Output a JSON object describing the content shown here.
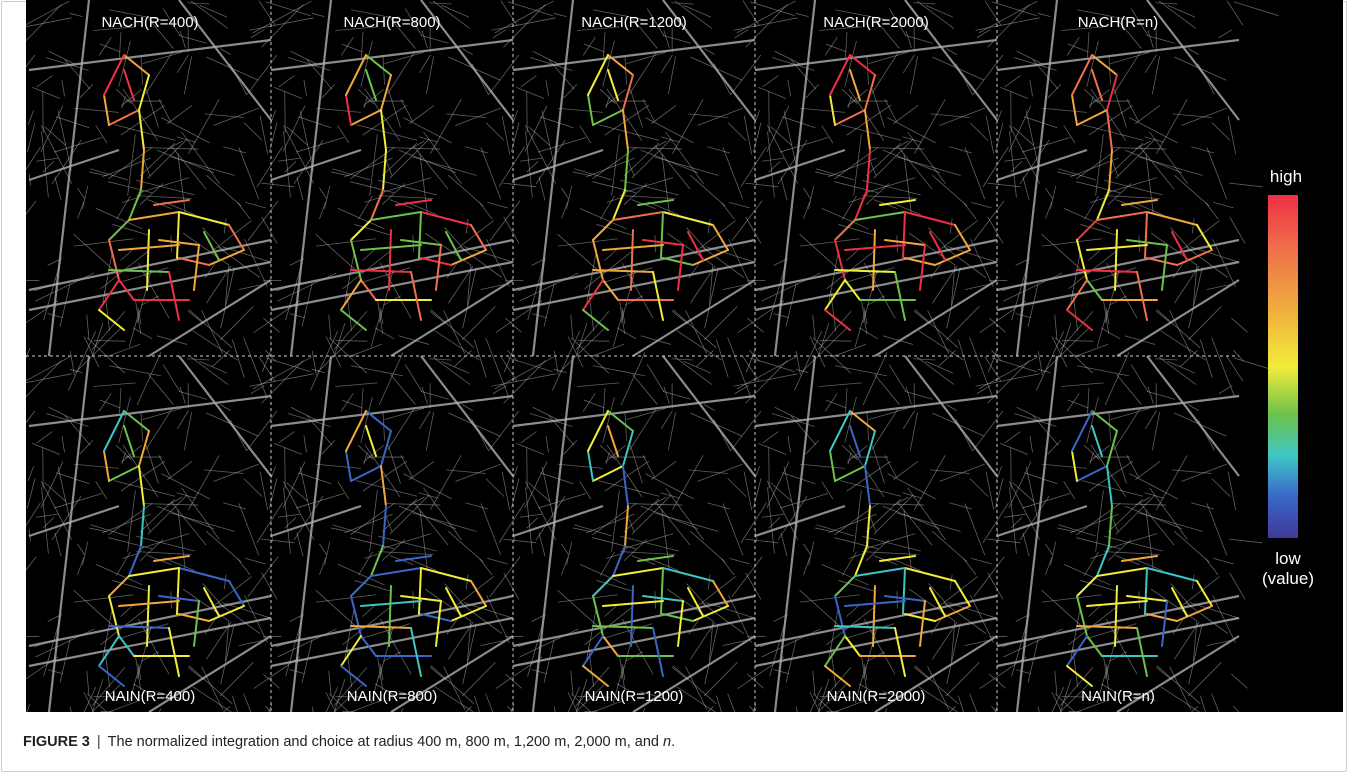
{
  "figure": {
    "top_labels": [
      "NACH(R=400)",
      "NACH(R=800)",
      "NACH(R=1200)",
      "NACH(R=2000)",
      "NACH(R=n)"
    ],
    "bottom_labels": [
      "NAIN(R=400)",
      "NAIN(R=800)",
      "NAIN(R=1200)",
      "NAIN(R=2000)",
      "NAIN(R=n)"
    ],
    "legend": {
      "high": "high",
      "low": "low",
      "low_suffix": "(value)",
      "gradient": [
        "#ee3046",
        "#f0704a",
        "#f0a83e",
        "#f2ec3a",
        "#6cc24a",
        "#3fc6c4",
        "#3a66c8",
        "#3e3a98"
      ]
    },
    "colors": {
      "background": "#000000",
      "street": "#b0b0b0",
      "panel_divider": "#cfcfcf"
    }
  },
  "caption": {
    "label": "FIGURE 3",
    "separator": "|",
    "text": "The normalized integration and choice at radius 400 m, 800 m, 1,200 m, 2,000 m, and ",
    "italic_tail": "n",
    "end": "."
  }
}
